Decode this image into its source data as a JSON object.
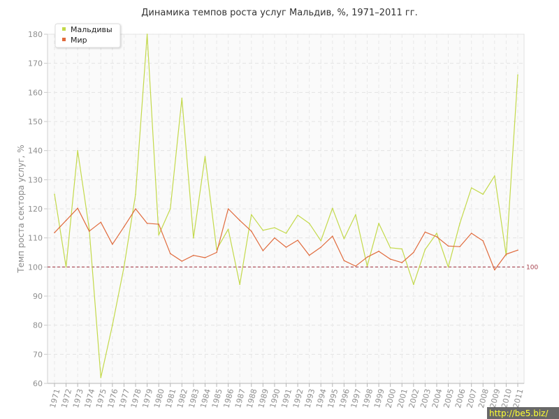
{
  "chart_data": {
    "type": "line",
    "title": "Динамика темпов роста услуг Мальдив, %, 1971–2011 гг.",
    "xlabel": "",
    "ylabel": "Темп роста сектора услуг, %",
    "ylim": [
      60,
      180
    ],
    "yticks": [
      60,
      70,
      80,
      90,
      100,
      110,
      120,
      130,
      140,
      150,
      160,
      170,
      180
    ],
    "x": [
      1971,
      1972,
      1973,
      1974,
      1975,
      1976,
      1977,
      1978,
      1979,
      1980,
      1981,
      1982,
      1983,
      1984,
      1985,
      1986,
      1987,
      1988,
      1989,
      1990,
      1991,
      1992,
      1993,
      1994,
      1995,
      1996,
      1997,
      1998,
      1999,
      2000,
      2001,
      2002,
      2003,
      2004,
      2005,
      2006,
      2007,
      2008,
      2009,
      2010,
      2011
    ],
    "series": [
      {
        "name": "Мальдивы",
        "color": "#c3d94a",
        "values": [
          125,
          100,
          140,
          113,
          62,
          80,
          100,
          125,
          180,
          111,
          120,
          158,
          110,
          138,
          106,
          113,
          94,
          118,
          112.6,
          113.5,
          111.6,
          117.8,
          115,
          109,
          120.2,
          109.7,
          118,
          100.3,
          115,
          106.6,
          106.2,
          94,
          106,
          111.6,
          100,
          115,
          127.2,
          125,
          131.3,
          104,
          166
        ]
      },
      {
        "name": "Мир",
        "color": "#e06a3c",
        "values": [
          111.8,
          116,
          120.2,
          112.3,
          115.4,
          107.8,
          113.8,
          120,
          115,
          114.7,
          104.6,
          102,
          104,
          103.2,
          105,
          120,
          116,
          112.3,
          105.6,
          110,
          106.8,
          109.2,
          104,
          106.8,
          110.6,
          102.2,
          100.3,
          103.4,
          105.4,
          102.7,
          101.5,
          105,
          112,
          110.4,
          107.2,
          107,
          111.6,
          109,
          99,
          104.4,
          105.8
        ]
      }
    ],
    "reference_line": {
      "value": 100,
      "label": "100",
      "color": "#a5404c"
    },
    "grid": true,
    "legend": "top-left"
  },
  "watermark": "http://be5.biz/"
}
